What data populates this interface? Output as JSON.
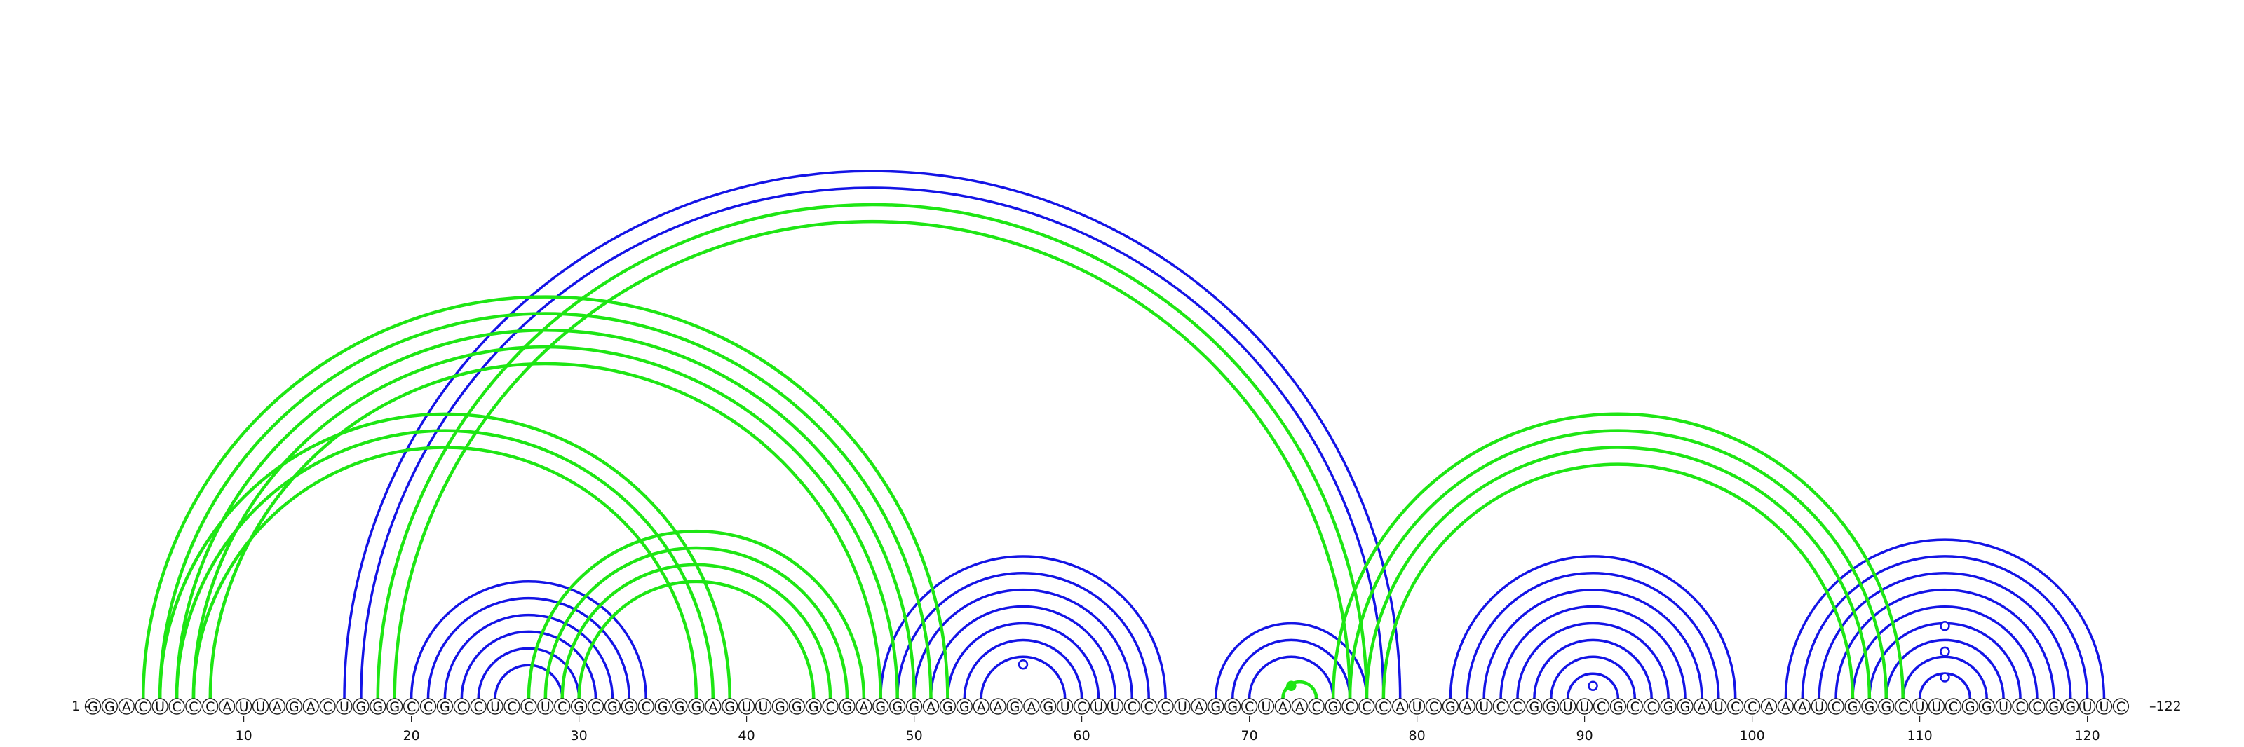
{
  "diagram": {
    "sequence": "GGACUCCCAUUAGACUGGGCCGCCUCCUCGCGGCGGGAGUUGGGCGAGGGAGGAAGAGUCUUCCCUAGGCUAACGCCCAUCGAUCCGGUUCGCCGGAUCCAAAUCGGGCUUCGGUCCGGUUC",
    "start_label": "1 –",
    "end_label": "–122",
    "ticks": [
      10,
      20,
      30,
      40,
      50,
      60,
      70,
      80,
      90,
      100,
      110,
      120
    ],
    "colors": {
      "blue": "#1414e6",
      "green": "#1ee614",
      "circle_stroke": "#222222"
    },
    "arcs": [
      {
        "i": 20,
        "j": 34,
        "color": "blue"
      },
      {
        "i": 21,
        "j": 33,
        "color": "blue"
      },
      {
        "i": 22,
        "j": 32,
        "color": "blue"
      },
      {
        "i": 23,
        "j": 31,
        "color": "blue"
      },
      {
        "i": 24,
        "j": 30,
        "color": "blue"
      },
      {
        "i": 25,
        "j": 29,
        "color": "blue"
      },
      {
        "i": 16,
        "j": 79,
        "color": "blue"
      },
      {
        "i": 17,
        "j": 78,
        "color": "blue"
      },
      {
        "i": 48,
        "j": 65,
        "color": "blue"
      },
      {
        "i": 49,
        "j": 64,
        "color": "blue"
      },
      {
        "i": 50,
        "j": 63,
        "color": "blue"
      },
      {
        "i": 51,
        "j": 62,
        "color": "blue"
      },
      {
        "i": 52,
        "j": 61,
        "color": "blue"
      },
      {
        "i": 53,
        "j": 60,
        "color": "blue"
      },
      {
        "i": 54,
        "j": 59,
        "color": "blue"
      },
      {
        "i": 68,
        "j": 77,
        "color": "blue"
      },
      {
        "i": 69,
        "j": 76,
        "color": "blue"
      },
      {
        "i": 70,
        "j": 75,
        "color": "blue"
      },
      {
        "i": 82,
        "j": 99,
        "color": "blue"
      },
      {
        "i": 83,
        "j": 98,
        "color": "blue"
      },
      {
        "i": 84,
        "j": 97,
        "color": "blue"
      },
      {
        "i": 85,
        "j": 96,
        "color": "blue"
      },
      {
        "i": 86,
        "j": 95,
        "color": "blue"
      },
      {
        "i": 87,
        "j": 94,
        "color": "blue"
      },
      {
        "i": 88,
        "j": 93,
        "color": "blue"
      },
      {
        "i": 89,
        "j": 92,
        "color": "blue"
      },
      {
        "i": 102,
        "j": 121,
        "color": "blue"
      },
      {
        "i": 103,
        "j": 120,
        "color": "blue"
      },
      {
        "i": 104,
        "j": 119,
        "color": "blue"
      },
      {
        "i": 105,
        "j": 118,
        "color": "blue"
      },
      {
        "i": 106,
        "j": 117,
        "color": "blue"
      },
      {
        "i": 107,
        "j": 116,
        "color": "blue"
      },
      {
        "i": 108,
        "j": 115,
        "color": "blue"
      },
      {
        "i": 109,
        "j": 114,
        "color": "blue"
      },
      {
        "i": 110,
        "j": 113,
        "color": "blue"
      },
      {
        "i": 4,
        "j": 52,
        "color": "green"
      },
      {
        "i": 5,
        "j": 51,
        "color": "green"
      },
      {
        "i": 6,
        "j": 50,
        "color": "green"
      },
      {
        "i": 7,
        "j": 49,
        "color": "green"
      },
      {
        "i": 8,
        "j": 48,
        "color": "green"
      },
      {
        "i": 5,
        "j": 39,
        "color": "green"
      },
      {
        "i": 6,
        "j": 38,
        "color": "green"
      },
      {
        "i": 7,
        "j": 37,
        "color": "green"
      },
      {
        "i": 18,
        "j": 77,
        "color": "green"
      },
      {
        "i": 19,
        "j": 76,
        "color": "green"
      },
      {
        "i": 27,
        "j": 47,
        "color": "green"
      },
      {
        "i": 28,
        "j": 46,
        "color": "green"
      },
      {
        "i": 29,
        "j": 45,
        "color": "green"
      },
      {
        "i": 30,
        "j": 44,
        "color": "green"
      },
      {
        "i": 72,
        "j": 74,
        "color": "green"
      },
      {
        "i": 75,
        "j": 109,
        "color": "green"
      },
      {
        "i": 76,
        "j": 108,
        "color": "green"
      },
      {
        "i": 77,
        "j": 107,
        "color": "green"
      },
      {
        "i": 78,
        "j": 106,
        "color": "green"
      }
    ],
    "markers": [
      {
        "pos": 56.5,
        "level": 8,
        "color": "blue",
        "filled": false
      },
      {
        "pos": 72.5,
        "level": 3,
        "color": "green",
        "filled": true
      },
      {
        "pos": 90.5,
        "level": 3,
        "color": "blue",
        "filled": false
      },
      {
        "pos": 111.5,
        "level": 5,
        "color": "blue",
        "filled": false
      },
      {
        "pos": 111.5,
        "level": 11,
        "color": "blue",
        "filled": false
      },
      {
        "pos": 111.5,
        "level": 17,
        "color": "blue",
        "filled": false
      }
    ]
  }
}
